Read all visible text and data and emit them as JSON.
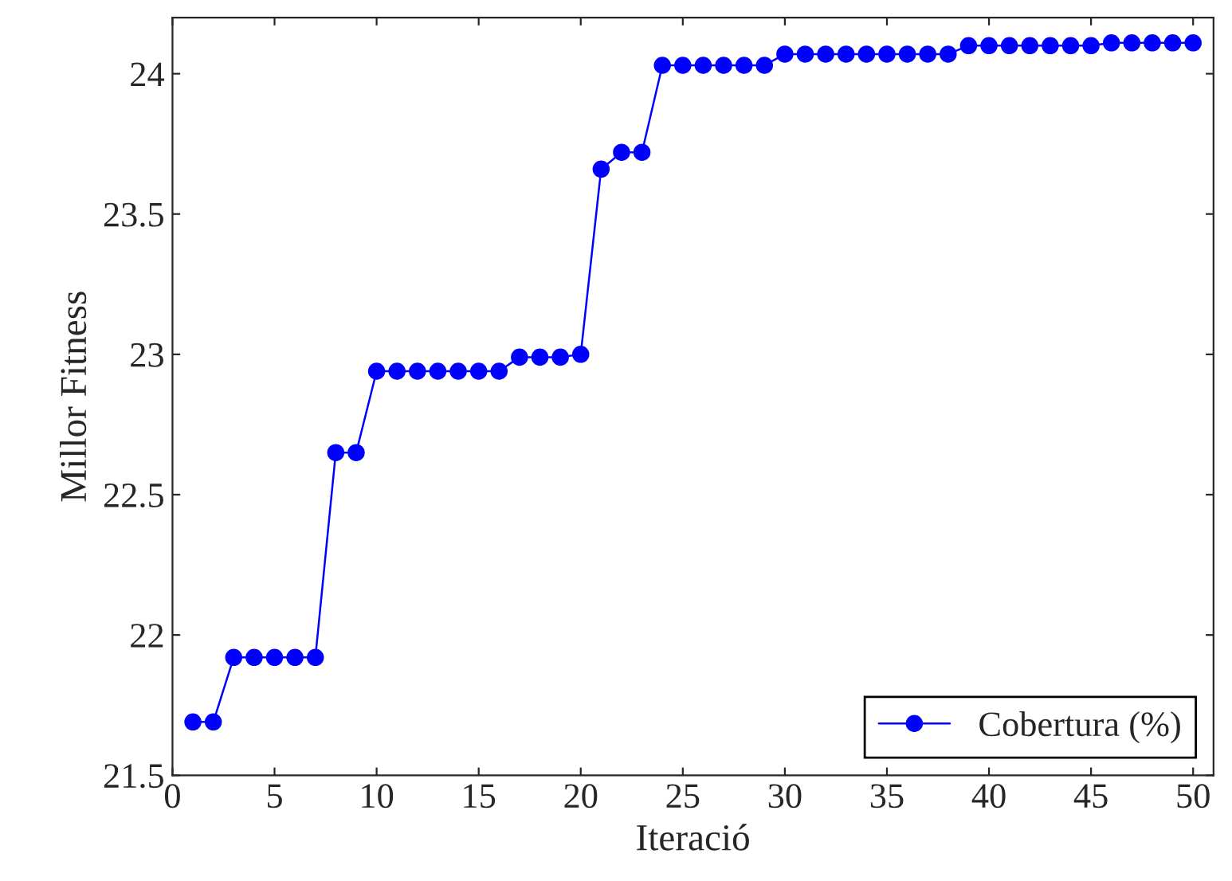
{
  "chart_data": {
    "type": "line",
    "xlabel": "Iteració",
    "ylabel": "Millor Fitness",
    "x": [
      1,
      2,
      3,
      4,
      5,
      6,
      7,
      8,
      9,
      10,
      11,
      12,
      13,
      14,
      15,
      16,
      17,
      18,
      19,
      20,
      21,
      22,
      23,
      24,
      25,
      26,
      27,
      28,
      29,
      30,
      31,
      32,
      33,
      34,
      35,
      36,
      37,
      38,
      39,
      40,
      41,
      42,
      43,
      44,
      45,
      46,
      47,
      48,
      49,
      50
    ],
    "series": [
      {
        "name": "Cobertura (%)",
        "color": "#0000ff",
        "values": [
          21.69,
          21.69,
          21.92,
          21.92,
          21.92,
          21.92,
          21.92,
          22.65,
          22.65,
          22.94,
          22.94,
          22.94,
          22.94,
          22.94,
          22.94,
          22.94,
          22.99,
          22.99,
          22.99,
          23.0,
          23.66,
          23.72,
          23.72,
          24.03,
          24.03,
          24.03,
          24.03,
          24.03,
          24.03,
          24.07,
          24.07,
          24.07,
          24.07,
          24.07,
          24.07,
          24.07,
          24.07,
          24.07,
          24.1,
          24.1,
          24.1,
          24.1,
          24.1,
          24.1,
          24.1,
          24.11,
          24.11,
          24.11,
          24.11,
          24.11
        ]
      }
    ],
    "xlim": [
      0,
      51
    ],
    "ylim": [
      21.5,
      24.2
    ],
    "xticks": [
      0,
      5,
      10,
      15,
      20,
      25,
      30,
      35,
      40,
      45,
      50
    ],
    "yticks": [
      21.5,
      22,
      22.5,
      23,
      23.5,
      24
    ],
    "marker": "circle",
    "line_style": "solid",
    "grid": false,
    "legend": "bottom right"
  }
}
